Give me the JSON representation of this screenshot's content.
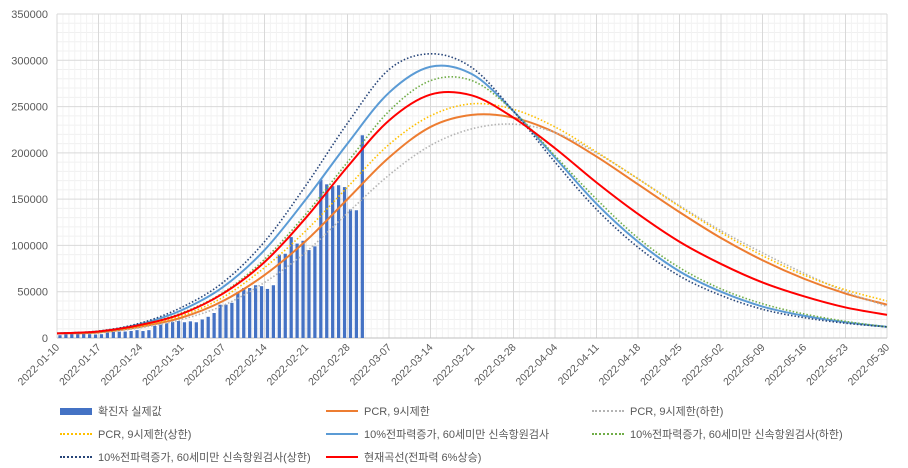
{
  "chart_data": {
    "type": "line",
    "title": "",
    "xlabel": "",
    "ylabel": "",
    "ylim": [
      0,
      350000
    ],
    "yticks": [
      "0",
      "50000",
      "100000",
      "150000",
      "200000",
      "250000",
      "300000",
      "350000"
    ],
    "xticks": [
      "2022-01-10",
      "2022-01-17",
      "2022-01-24",
      "2022-01-31",
      "2022-02-07",
      "2022-02-14",
      "2022-02-21",
      "2022-02-28",
      "2022-03-07",
      "2022-03-14",
      "2022-03-21",
      "2022-03-28",
      "2022-04-04",
      "2022-04-11",
      "2022-04-18",
      "2022-04-25",
      "2022-05-02",
      "2022-05-09",
      "2022-05-16",
      "2022-05-23",
      "2022-05-30"
    ],
    "x_days_span": 140,
    "bars": {
      "name": "확진자 실제값",
      "color": "#4472c4",
      "start": "2022-01-10",
      "values": [
        3000,
        4000,
        4300,
        4200,
        4500,
        4100,
        3800,
        4100,
        5800,
        6600,
        6800,
        7000,
        7600,
        8500,
        7500,
        8500,
        13000,
        14500,
        16000,
        17500,
        18300,
        17000,
        18000,
        17000,
        20000,
        22900,
        27000,
        36000,
        36000,
        38000,
        49500,
        54000,
        54000,
        57000,
        56000,
        53000,
        57000,
        90000,
        91000,
        109000,
        102000,
        105000,
        95000,
        99000,
        171000,
        166000,
        164000,
        165000,
        163000,
        139000,
        138000,
        219000
      ]
    },
    "series": [
      {
        "name": "PCR, 9시제한",
        "color": "#ed7d31",
        "style": "solid",
        "values": [
          5000,
          6000,
          12000,
          22000,
          40000,
          68000,
          105000,
          150000,
          195000,
          228000,
          241000,
          238000,
          222000,
          196000,
          166000,
          136000,
          108000,
          84000,
          64000,
          48000,
          36000
        ]
      },
      {
        "name": "PCR, 9시제한(하한)",
        "color": "#b4b4b4",
        "style": "dotted",
        "values": [
          5000,
          6000,
          11000,
          20000,
          35000,
          60000,
          93000,
          135000,
          176000,
          208000,
          226000,
          231000,
          222000,
          200000,
          172000,
          143000,
          116000,
          92000,
          70000,
          50000,
          34000
        ]
      },
      {
        "name": "PCR, 9시제한(상한)",
        "color": "#ffc000",
        "style": "dotted",
        "values": [
          5000,
          6500,
          13000,
          24000,
          44000,
          76000,
          116000,
          163000,
          209000,
          240000,
          253000,
          247000,
          228000,
          201000,
          172000,
          142000,
          114000,
          89000,
          68000,
          52000,
          40000
        ]
      },
      {
        "name": "10%전파력증가, 60세미만 신속항원검사",
        "color": "#5b9bd5",
        "style": "solid",
        "values": [
          5000,
          7000,
          15000,
          30000,
          55000,
          95000,
          150000,
          210000,
          265000,
          293000,
          285000,
          245000,
          195000,
          145000,
          104000,
          72000,
          50000,
          34000,
          24000,
          17000,
          12000
        ]
      },
      {
        "name": "10%전파력증가, 60세미만 신속항원검사(하한)",
        "color": "#70ad47",
        "style": "dotted",
        "values": [
          5000,
          6500,
          14000,
          27000,
          49000,
          85000,
          134000,
          190000,
          245000,
          278000,
          278000,
          245000,
          197000,
          150000,
          108000,
          76000,
          53000,
          37000,
          26000,
          18000,
          12000
        ]
      },
      {
        "name": "10%전파력증가, 60세미만 신속항원검사(상한)",
        "color": "#264478",
        "style": "dotted",
        "values": [
          5000,
          7500,
          16000,
          33000,
          60000,
          104000,
          165000,
          232000,
          290000,
          307000,
          292000,
          245000,
          190000,
          139000,
          98000,
          67000,
          46000,
          31000,
          22000,
          16000,
          12000
        ]
      },
      {
        "name": "현재곡선(전파력 6%상승)",
        "color": "#ff0000",
        "style": "solid",
        "values": [
          5000,
          7000,
          14000,
          26000,
          48000,
          82000,
          130000,
          185000,
          235000,
          263000,
          262000,
          238000,
          205000,
          168000,
          134000,
          104000,
          80000,
          60000,
          45000,
          33000,
          25000
        ]
      }
    ],
    "legend_position": "bottom",
    "grid": true
  }
}
